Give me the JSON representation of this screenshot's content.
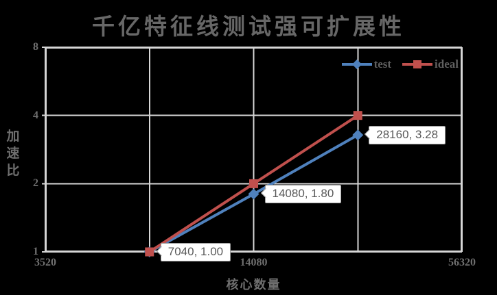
{
  "chart_data": {
    "type": "line",
    "title": "千亿特征线测试强可扩展性",
    "xlabel": "核心数量",
    "ylabel": "加速比",
    "x_scale": "log2",
    "y_scale": "log2",
    "x_range": [
      3520,
      56320
    ],
    "y_range": [
      1,
      8
    ],
    "x_ticks": [
      3520,
      14080,
      56320
    ],
    "x_gridlines": [
      3520,
      7040,
      14080,
      28160,
      56320
    ],
    "y_ticks": [
      1,
      2,
      4,
      8
    ],
    "x": [
      7040,
      14080,
      28160
    ],
    "series": [
      {
        "name": "test",
        "color": "#4f81bd",
        "marker": "diamond",
        "values": [
          1.0,
          1.8,
          3.28
        ]
      },
      {
        "name": "ideal",
        "color": "#c0504d",
        "marker": "square",
        "values": [
          1.0,
          2.0,
          4.0
        ]
      }
    ],
    "data_labels": [
      {
        "series": "test",
        "x": 7040,
        "y": 1.0,
        "text": "7040, 1.00"
      },
      {
        "series": "test",
        "x": 14080,
        "y": 1.8,
        "text": "14080, 1.80"
      },
      {
        "series": "test",
        "x": 28160,
        "y": 3.28,
        "text": "28160, 3.28"
      }
    ],
    "legend": {
      "position": "top-right-inside",
      "entries": [
        "test",
        "ideal"
      ]
    },
    "grid": "on",
    "colors": {
      "background": "#000000",
      "gridline": "#d6d6d6",
      "axis_text": "#6f6f6f",
      "title_text": "#676767",
      "callout_bg": "#ffffff",
      "callout_border": "#9e9e9e",
      "callout_text": "#595959"
    }
  }
}
